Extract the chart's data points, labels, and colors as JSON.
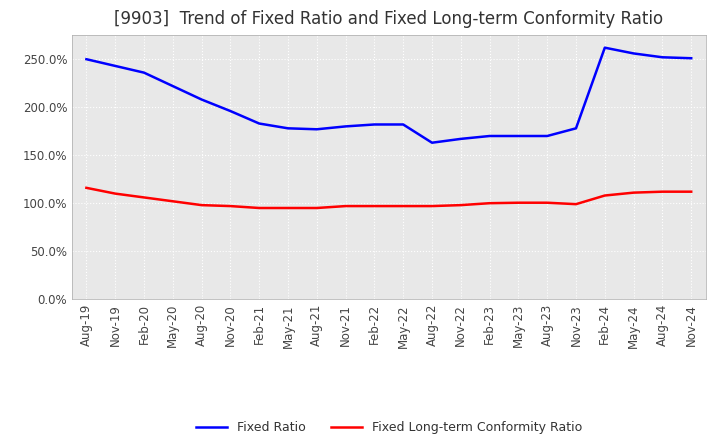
{
  "title": "[9903]  Trend of Fixed Ratio and Fixed Long-term Conformity Ratio",
  "x_labels": [
    "Aug-19",
    "Nov-19",
    "Feb-20",
    "May-20",
    "Aug-20",
    "Nov-20",
    "Feb-21",
    "May-21",
    "Aug-21",
    "Nov-21",
    "Feb-22",
    "May-22",
    "Aug-22",
    "Nov-22",
    "Feb-23",
    "May-23",
    "Aug-23",
    "Nov-23",
    "Feb-24",
    "May-24",
    "Aug-24",
    "Nov-24"
  ],
  "fixed_ratio": [
    250.0,
    243.0,
    236.0,
    222.0,
    208.0,
    196.0,
    183.0,
    178.0,
    177.0,
    180.0,
    182.0,
    182.0,
    163.0,
    167.0,
    170.0,
    170.0,
    170.0,
    178.0,
    262.0,
    256.0,
    252.0,
    251.0
  ],
  "fixed_lt_ratio": [
    116.0,
    110.0,
    106.0,
    102.0,
    98.0,
    97.0,
    95.0,
    95.0,
    95.0,
    97.0,
    97.0,
    97.0,
    97.0,
    98.0,
    100.0,
    100.5,
    100.5,
    99.0,
    108.0,
    111.0,
    112.0,
    112.0
  ],
  "fixed_ratio_color": "#0000ff",
  "fixed_lt_ratio_color": "#ff0000",
  "plot_bg_color": "#e8e8e8",
  "fig_bg_color": "#ffffff",
  "grid_color": "#ffffff",
  "ylim": [
    0.0,
    275.0
  ],
  "yticks": [
    0.0,
    50.0,
    100.0,
    150.0,
    200.0,
    250.0
  ],
  "legend_fixed_ratio": "Fixed Ratio",
  "legend_fixed_lt_ratio": "Fixed Long-term Conformity Ratio",
  "title_fontsize": 12,
  "axis_fontsize": 8.5,
  "legend_fontsize": 9,
  "line_width": 1.8
}
